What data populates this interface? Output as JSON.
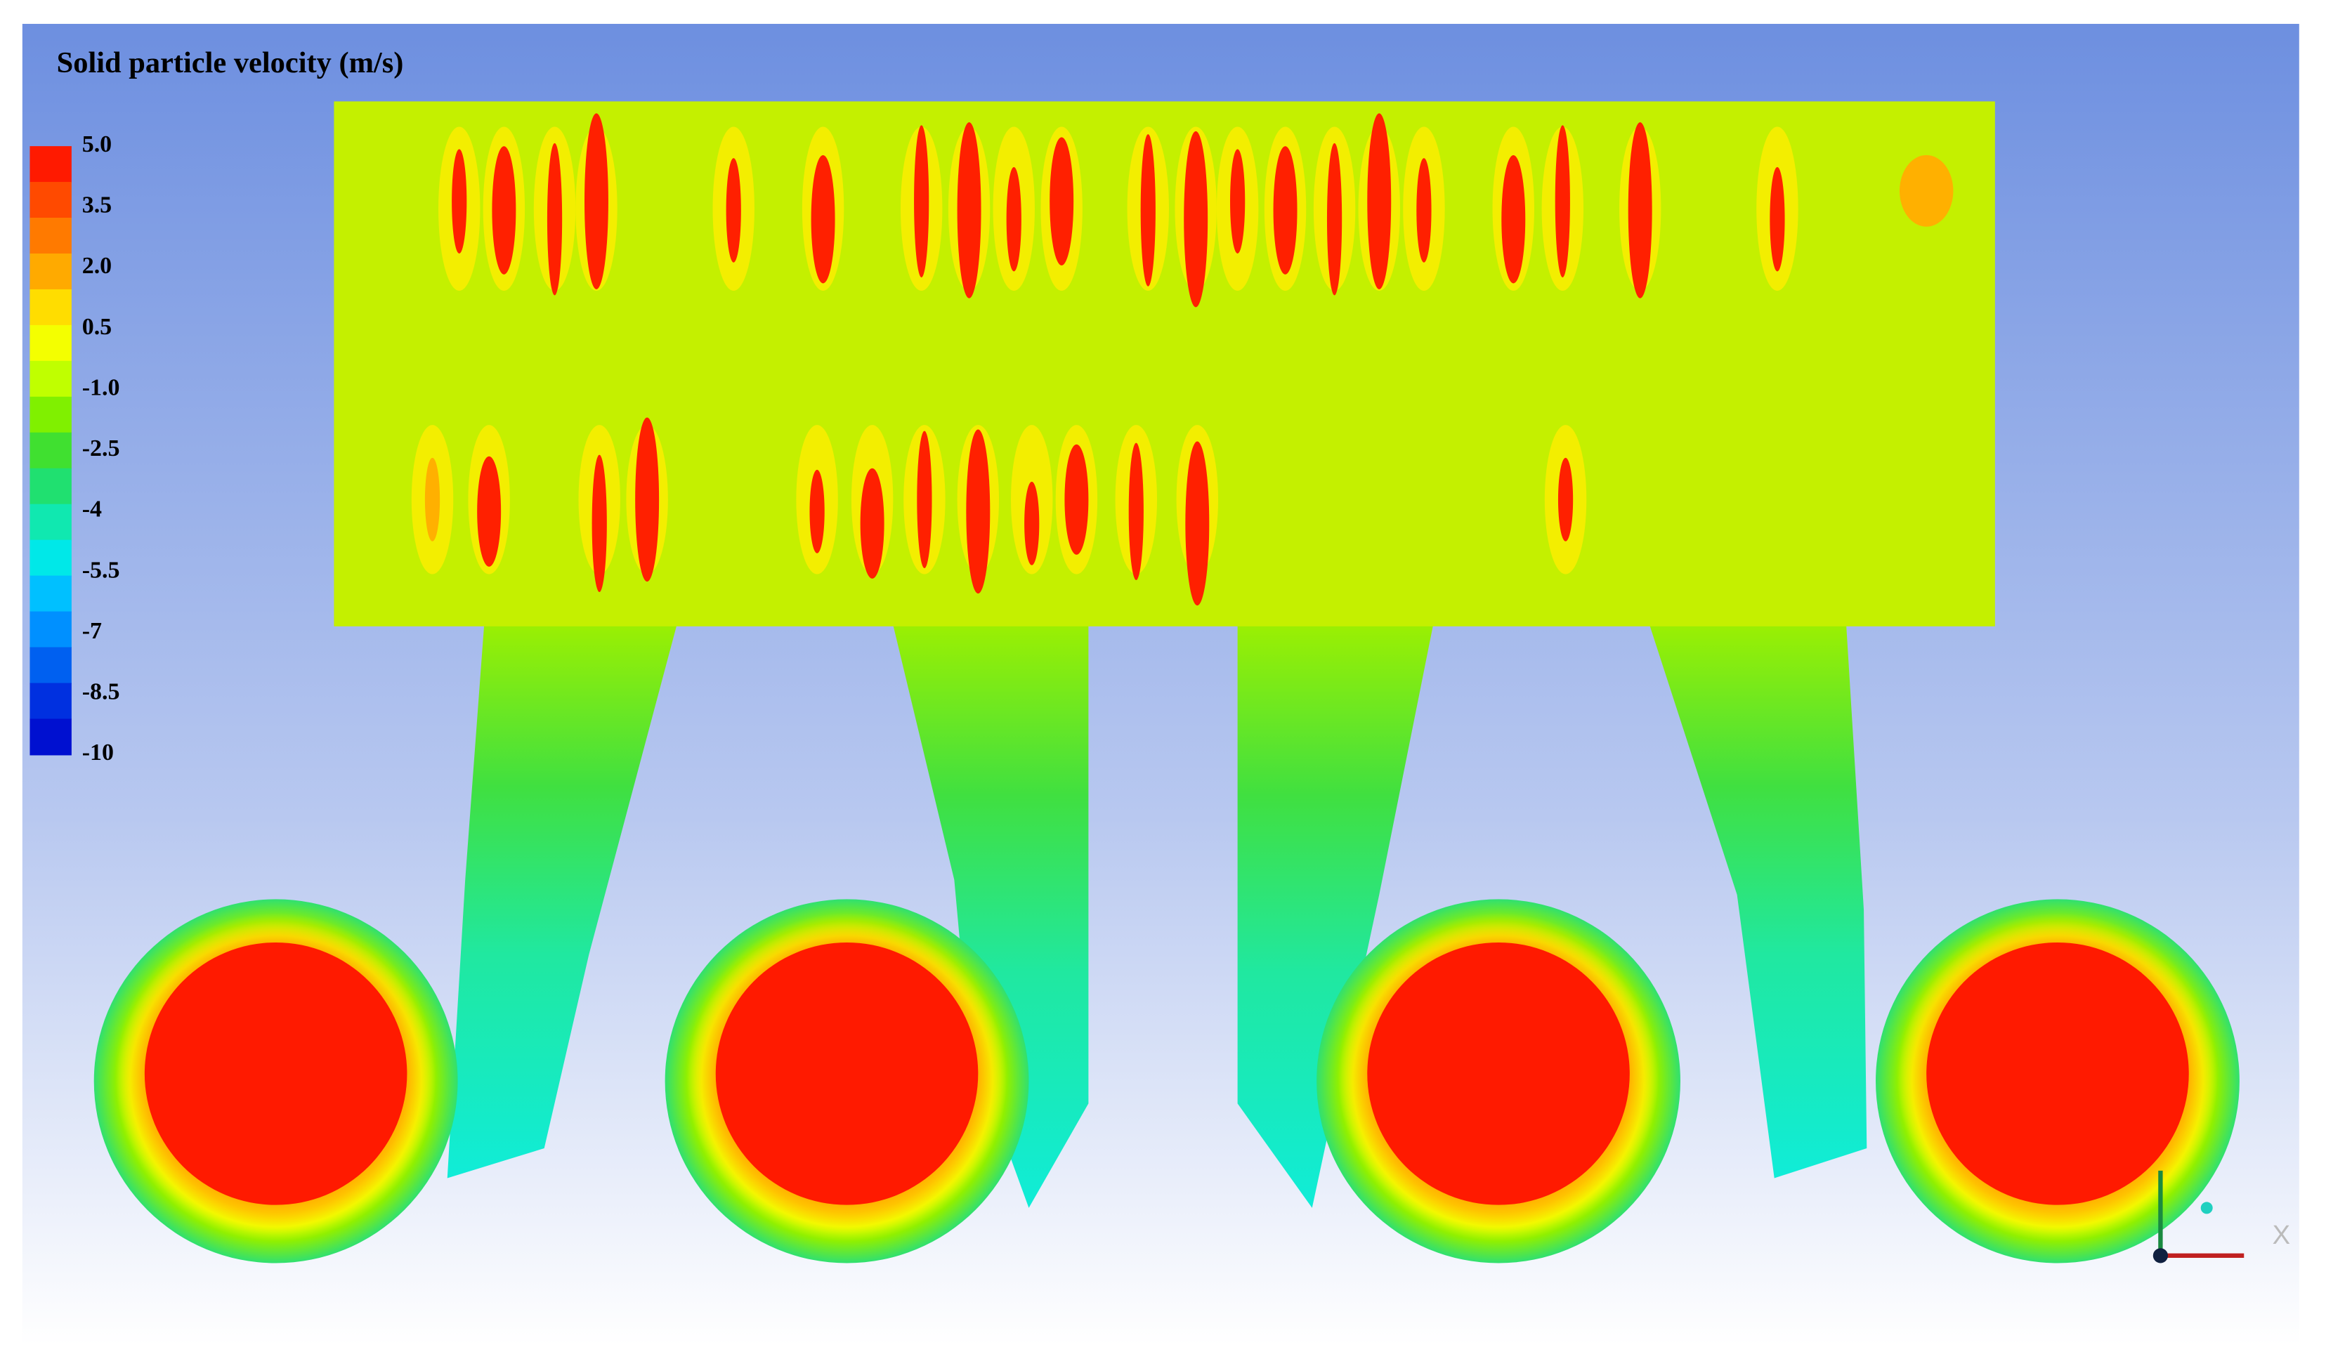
{
  "title": "Solid particle velocity (m/s)",
  "legend": {
    "labels": [
      "5.0",
      "3.5",
      "2.0",
      "0.5",
      "-1.0",
      "-2.5",
      "-4",
      "-5.5",
      "-7",
      "-8.5",
      "-10"
    ],
    "colors": [
      "#ff1a00",
      "#ff4a00",
      "#ff7a00",
      "#ffaa00",
      "#ffdd00",
      "#f4ff00",
      "#c0ff00",
      "#80f000",
      "#40e030",
      "#20e070",
      "#10e8b0",
      "#00e8e8",
      "#00c0ff",
      "#0090ff",
      "#0060f0",
      "#0030e0",
      "#0010d0"
    ]
  },
  "axis_triad": {
    "x_label": "X"
  }
}
